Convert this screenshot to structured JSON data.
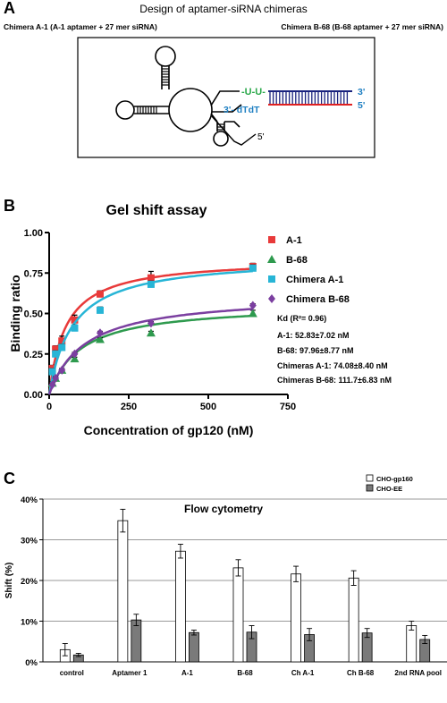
{
  "panels": {
    "a": {
      "letter": "A",
      "title": "Design of aptamer-siRNA chimeras",
      "left_label": "Chimera A-1 (A-1 aptamer + 27 mer siRNA)",
      "right_label": "Chimera B-68 (B-68 aptamer + 27 mer siRNA)",
      "uu_label": "-U-U-",
      "dtdt_label": "3'- dTdT",
      "three_prime": "3'",
      "five_prime_right": "5'",
      "five_prime_stem": "5'",
      "colors": {
        "uu": "#2aa84a",
        "dtdt": "#1e7fc2",
        "sense": "#1a237e",
        "antisense": "#e02020"
      }
    },
    "b": {
      "letter": "B",
      "kd_header": "Kd  (R²= 0.96)",
      "kd_lines": [
        "A-1: 52.83±7.02 nM",
        "B-68: 97.96±8.77 nM",
        "Chimeras A-1: 74.08±8.40 nM",
        "Chimeras B-68: 111.7±6.83 nM"
      ]
    },
    "c": {
      "letter": "C"
    }
  },
  "chart_data": [
    {
      "type": "scatter",
      "title": "Gel shift assay",
      "xlabel": "Concentration of gp120 (nM)",
      "ylabel": "Binding ratio",
      "xlim": [
        0,
        750
      ],
      "ylim": [
        0,
        1.0
      ],
      "xticks": [
        0,
        250,
        500,
        750
      ],
      "yticks": [
        0.0,
        0.25,
        0.5,
        0.75,
        1.0
      ],
      "ytick_labels": [
        "0.00",
        "0.25",
        "0.50",
        "0.75",
        "1.00"
      ],
      "grid": false,
      "legend": "right",
      "series": [
        {
          "name": "A-1",
          "marker": "square",
          "color": "#e83a3a",
          "x": [
            10,
            20,
            40,
            80,
            160,
            320,
            640
          ],
          "y": [
            0.16,
            0.28,
            0.33,
            0.46,
            0.62,
            0.72,
            0.79
          ],
          "err": [
            0.02,
            0.02,
            0.03,
            0.03,
            0.02,
            0.04,
            0.02
          ],
          "fit": {
            "bmax": 0.84,
            "kd": 52.83
          }
        },
        {
          "name": "B-68",
          "marker": "triangle",
          "color": "#2e9a4e",
          "x": [
            10,
            20,
            40,
            80,
            160,
            320,
            640
          ],
          "y": [
            0.07,
            0.1,
            0.15,
            0.22,
            0.34,
            0.38,
            0.5
          ],
          "err": [
            0.01,
            0.01,
            0.01,
            0.01,
            0.01,
            0.01,
            0.02
          ],
          "fit": {
            "bmax": 0.56,
            "kd": 97.96
          }
        },
        {
          "name": "Chimera  A-1",
          "marker": "square",
          "color": "#27b5d6",
          "x": [
            10,
            20,
            40,
            80,
            160,
            320,
            640
          ],
          "y": [
            0.14,
            0.25,
            0.29,
            0.41,
            0.52,
            0.68,
            0.78
          ],
          "err": [
            0.02,
            0.02,
            0.02,
            0.02,
            0.02,
            0.02,
            0.02
          ],
          "fit": {
            "bmax": 0.85,
            "kd": 74.08
          }
        },
        {
          "name": "Chimera  B-68",
          "marker": "diamond",
          "color": "#7b3fa0",
          "x": [
            10,
            20,
            40,
            80,
            160,
            320,
            640
          ],
          "y": [
            0.06,
            0.1,
            0.15,
            0.25,
            0.38,
            0.44,
            0.55
          ],
          "err": [
            0.01,
            0.01,
            0.01,
            0.01,
            0.01,
            0.01,
            0.01
          ],
          "fit": {
            "bmax": 0.62,
            "kd": 111.7
          }
        }
      ]
    },
    {
      "type": "bar",
      "title": "Flow cytometry",
      "ylabel": "Shift (%)",
      "ylim": [
        0,
        40
      ],
      "yticks": [
        0,
        10,
        20,
        30,
        40
      ],
      "ytick_labels": [
        "0%",
        "10%",
        "20%",
        "30%",
        "40%"
      ],
      "grid": true,
      "legend": "top-right",
      "categories": [
        "control",
        "Aptamer 1",
        "A-1",
        "B-68",
        "Ch A-1",
        "Ch B-68",
        "2nd RNA pool"
      ],
      "series": [
        {
          "name": "CHO-gp160",
          "color": "#ffffff",
          "values": [
            3.0,
            34.7,
            27.2,
            23.1,
            21.6,
            20.6,
            8.9
          ],
          "err": [
            1.5,
            2.8,
            1.7,
            2.0,
            1.9,
            1.8,
            1.1
          ]
        },
        {
          "name": "CHO-EE",
          "color": "#7a7a7a",
          "values": [
            1.7,
            10.3,
            7.2,
            7.3,
            6.7,
            7.1,
            5.5
          ],
          "err": [
            0.4,
            1.4,
            0.6,
            1.6,
            1.5,
            1.1,
            1.0
          ]
        }
      ]
    }
  ]
}
